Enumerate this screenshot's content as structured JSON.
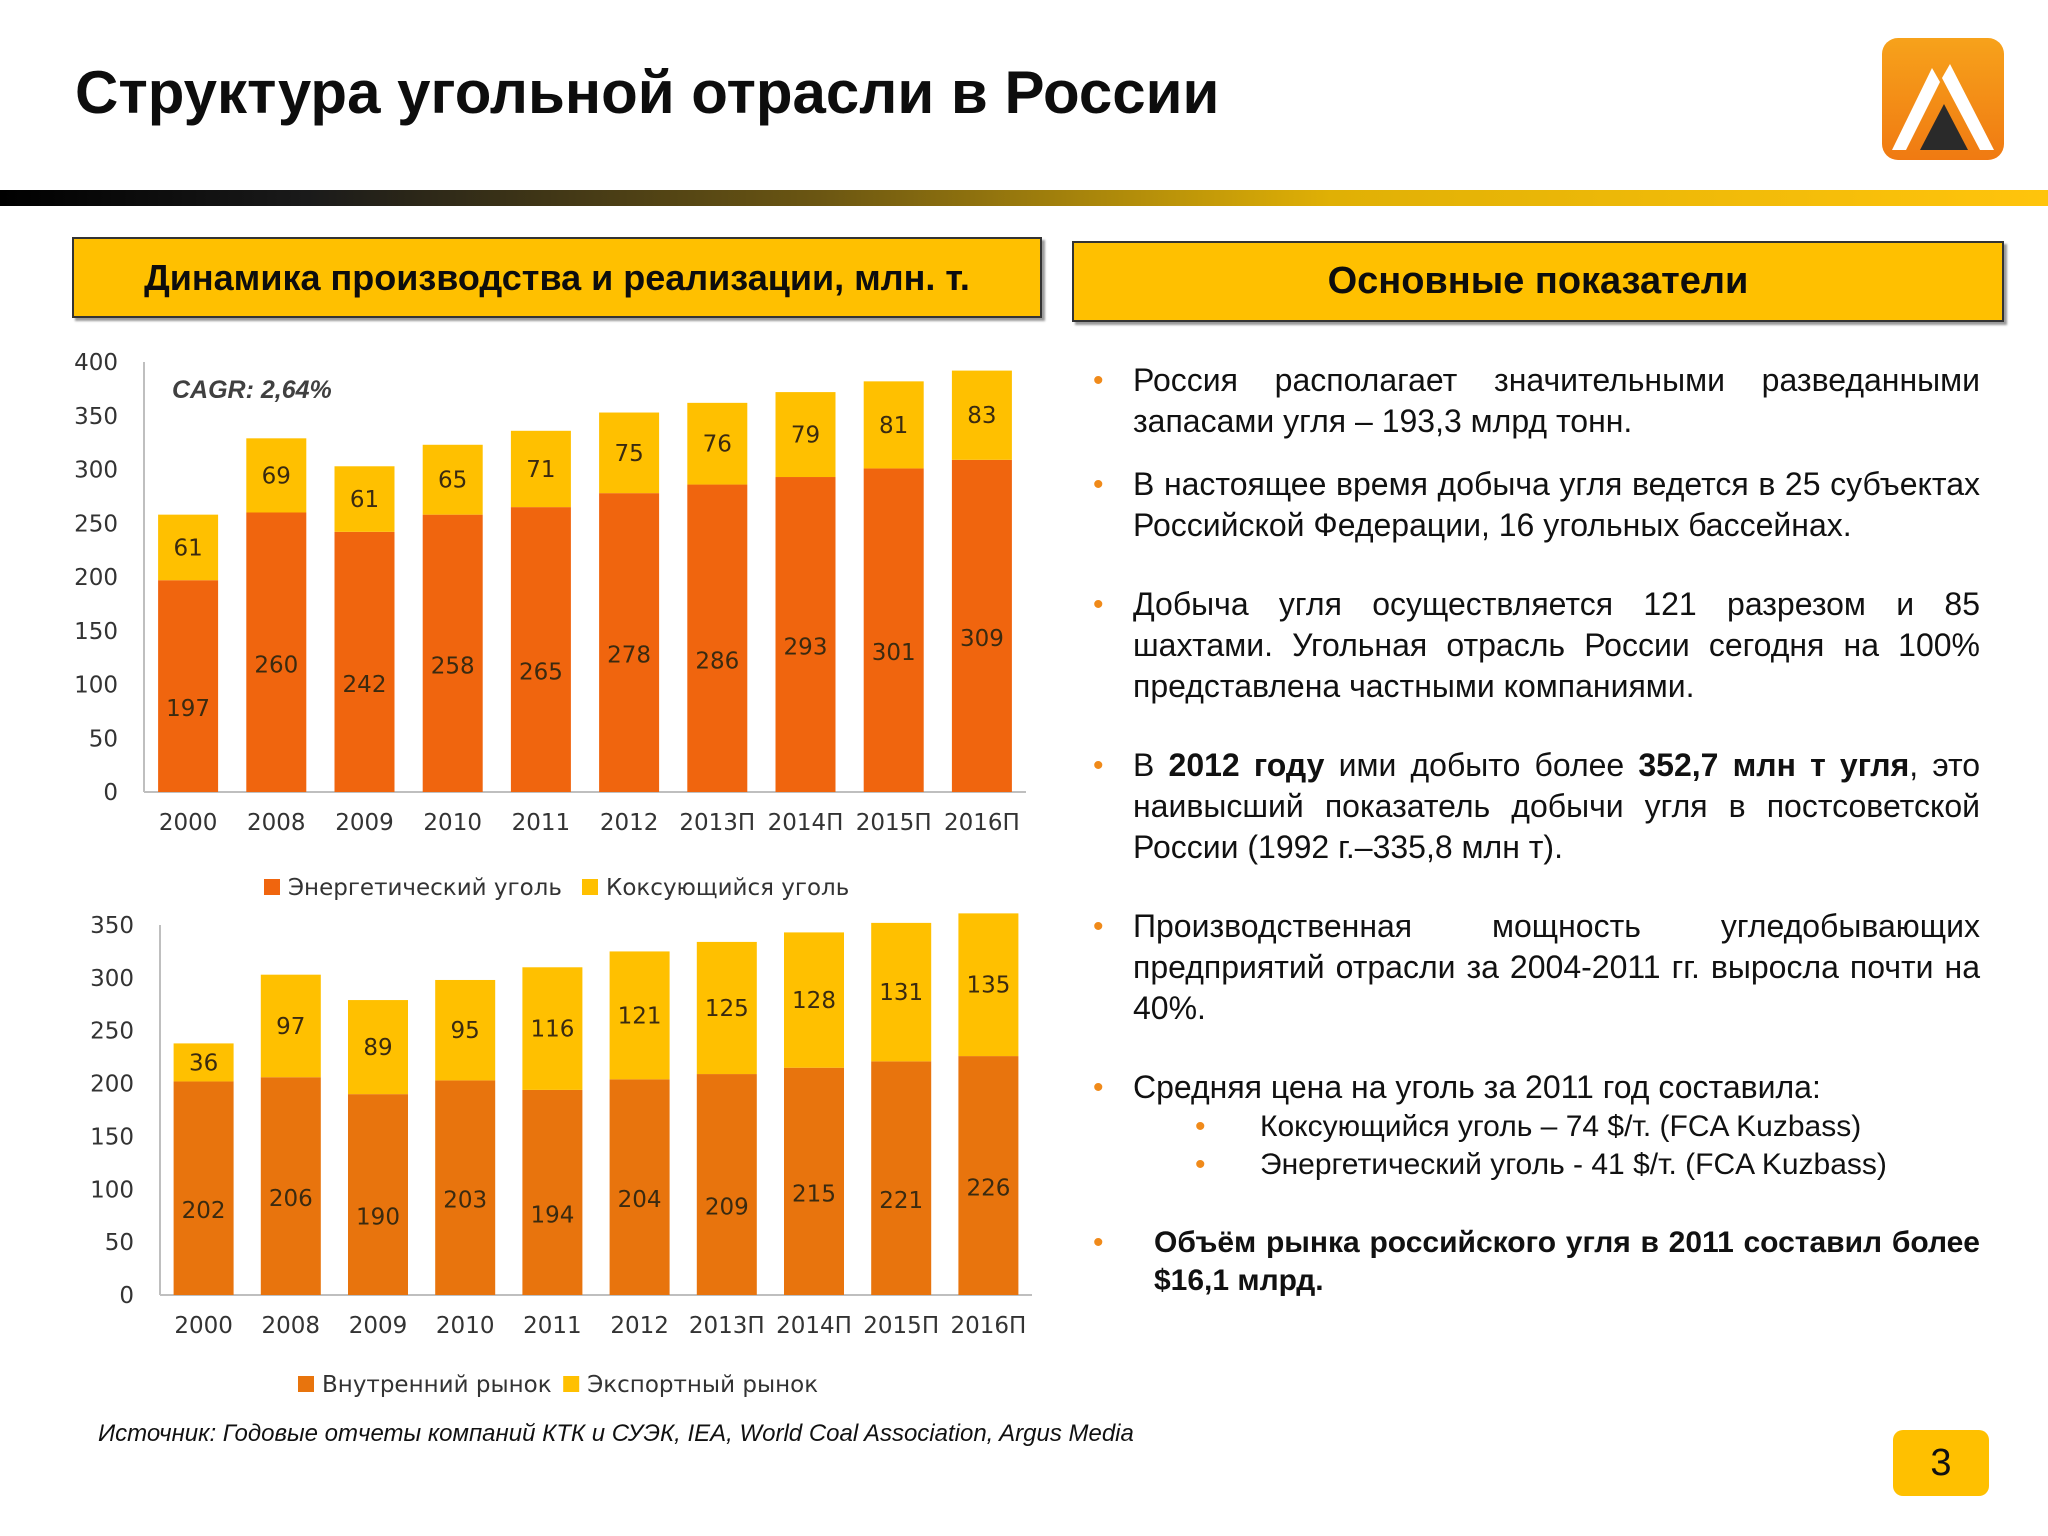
{
  "title": "Структура угольной отрасли в России",
  "left_header": "Динамика производства и реализации, млн. т.",
  "right_header": "Основные показатели",
  "colors": {
    "accent_yellow": "#ffc000",
    "orange_dark": "#f0650e",
    "orange_mid": "#e8740d",
    "bullet": "#f08a1a"
  },
  "chart_data": [
    {
      "type": "bar",
      "stacked": true,
      "title": "",
      "annotation": "CAGR: 2,64%",
      "categories": [
        "2000",
        "2008",
        "2009",
        "2010",
        "2011",
        "2012",
        "2013П",
        "2014П",
        "2015П",
        "2016П"
      ],
      "series": [
        {
          "name": "Энергетический уголь",
          "color": "#f0650e",
          "values": [
            197,
            260,
            242,
            258,
            265,
            278,
            286,
            293,
            301,
            309
          ]
        },
        {
          "name": "Коксующийся уголь",
          "color": "#ffc000",
          "values": [
            61,
            69,
            61,
            65,
            71,
            75,
            76,
            79,
            81,
            83
          ]
        }
      ],
      "ylim": [
        0,
        400
      ],
      "yticks": [
        0,
        50,
        100,
        150,
        200,
        250,
        300,
        350,
        400
      ],
      "grid": false,
      "legend": "bottom"
    },
    {
      "type": "bar",
      "stacked": true,
      "title": "",
      "categories": [
        "2000",
        "2008",
        "2009",
        "2010",
        "2011",
        "2012",
        "2013П",
        "2014П",
        "2015П",
        "2016П"
      ],
      "series": [
        {
          "name": "Внутренний рынок",
          "color": "#e8740d",
          "values": [
            202,
            206,
            190,
            203,
            194,
            204,
            209,
            215,
            221,
            226
          ]
        },
        {
          "name": "Экспортный рынок",
          "color": "#ffc000",
          "values": [
            36,
            97,
            89,
            95,
            116,
            121,
            125,
            128,
            131,
            135
          ]
        }
      ],
      "ylim": [
        0,
        350
      ],
      "yticks": [
        0,
        50,
        100,
        150,
        200,
        250,
        300,
        350
      ],
      "grid": false,
      "legend": "bottom"
    }
  ],
  "bullets": [
    {
      "parts": [
        {
          "t": "Россия располагает значительными разведанными запасами угля – 193,3 млрд тонн."
        }
      ]
    },
    {
      "parts": [
        {
          "t": "В настоящее время добыча угля ведется в 25 субъектах Российской Федерации, 16 угольных бассейнах."
        }
      ]
    },
    {
      "parts": [
        {
          "t": "Добыча угля осуществляется 121 разрезом и 85 шахтами. Угольная отрасль России сегодня на 100% представлена частными компаниями."
        }
      ]
    },
    {
      "parts": [
        {
          "t": "В "
        },
        {
          "t": "2012 году",
          "b": true
        },
        {
          "t": " ими добыто более "
        },
        {
          "t": "352,7 млн т угля",
          "b": true
        },
        {
          "t": ", это наивысший показатель добычи угля в постсоветской России (1992 г.–335,8 млн т)."
        }
      ]
    },
    {
      "parts": [
        {
          "t": "Производственная мощность угледобывающих предприятий отрасли за 2004-2011 гг. выросла почти на 40%."
        }
      ]
    },
    {
      "parts": [
        {
          "t": " Средняя цена на уголь за 2011 год составила:"
        }
      ],
      "sub": [
        "Коксующийся уголь – 74 $/т. (FCA Kuzbass)",
        "Энергетический уголь -  41 $/т. (FCA Kuzbass)"
      ]
    },
    {
      "parts": [
        {
          "t": "Объём рынка российского угля в 2011 составил более $16,1 млрд.",
          "b": true
        }
      ]
    }
  ],
  "source": "Источник: Годовые отчеты компаний КТК и СУЭК, IEA, World Coal Association, Argus Media",
  "page_number": "3"
}
